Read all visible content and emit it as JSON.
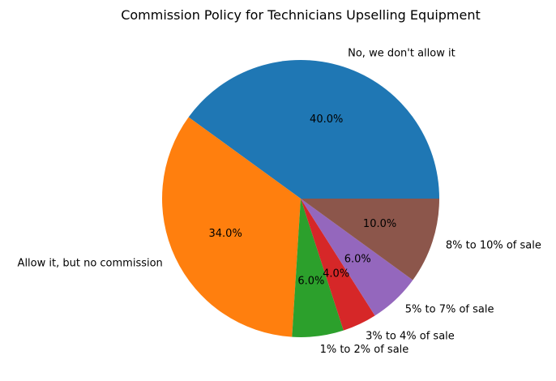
{
  "chart_data": {
    "type": "pie",
    "title": "Commission Policy for Technicians Upselling Equipment",
    "slices": [
      {
        "label": "No, we don't allow it",
        "value": 40.0,
        "pct_label": "40.0%",
        "color": "#1f77b4"
      },
      {
        "label": "Allow it, but no commission",
        "value": 34.0,
        "pct_label": "34.0%",
        "color": "#ff7f0e"
      },
      {
        "label": "1% to 2% of sale",
        "value": 6.0,
        "pct_label": "6.0%",
        "color": "#2ca02c"
      },
      {
        "label": "3% to 4% of sale",
        "value": 4.0,
        "pct_label": "4.0%",
        "color": "#d62728"
      },
      {
        "label": "5% to 7% of sale",
        "value": 6.0,
        "pct_label": "6.0%",
        "color": "#9467bd"
      },
      {
        "label": "8% to 10% of sale",
        "value": 10.0,
        "pct_label": "10.0%",
        "color": "#8c564b"
      }
    ],
    "start_angle_deg": 0,
    "direction": "counterclockwise"
  }
}
